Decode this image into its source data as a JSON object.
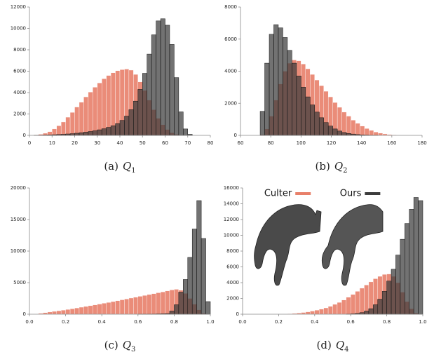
{
  "chart_data": [
    {
      "type": "histogram",
      "label": "(a)",
      "variable": "Q",
      "subscript": "1",
      "xlim": [
        0,
        80
      ],
      "xticks": [
        0,
        10,
        20,
        30,
        40,
        50,
        60,
        70,
        80
      ],
      "ylim": [
        0,
        12000
      ],
      "yticks": [
        0,
        2000,
        4000,
        6000,
        8000,
        10000,
        12000
      ],
      "bins": [
        0,
        2,
        4,
        6,
        8,
        10,
        12,
        14,
        16,
        18,
        20,
        22,
        24,
        26,
        28,
        30,
        32,
        34,
        36,
        38,
        40,
        42,
        44,
        46,
        48,
        50,
        52,
        54,
        56,
        58,
        60,
        62,
        64,
        66,
        68,
        70,
        72
      ],
      "series": [
        {
          "color": "#e8806a",
          "values": [
            20,
            50,
            100,
            200,
            350,
            600,
            900,
            1250,
            1700,
            2150,
            2650,
            3100,
            3600,
            4050,
            4500,
            4900,
            5300,
            5600,
            5850,
            6050,
            6150,
            6200,
            6100,
            5700,
            5000,
            4200,
            3300,
            2400,
            1600,
            1000,
            550,
            250,
            100,
            40,
            10,
            0
          ]
        },
        {
          "color": "#3c3c3c",
          "values": [
            0,
            10,
            20,
            30,
            40,
            60,
            80,
            100,
            130,
            160,
            200,
            250,
            300,
            360,
            430,
            520,
            620,
            750,
            900,
            1100,
            1400,
            1800,
            2400,
            3200,
            4300,
            5800,
            7600,
            9400,
            10700,
            10900,
            10300,
            8500,
            5400,
            2200,
            600,
            100
          ]
        }
      ]
    },
    {
      "type": "histogram",
      "label": "(b)",
      "variable": "Q",
      "subscript": "2",
      "xlim": [
        60,
        180
      ],
      "xticks": [
        60,
        80,
        100,
        120,
        140,
        160,
        180
      ],
      "ylim": [
        0,
        8000
      ],
      "yticks": [
        0,
        2000,
        4000,
        6000,
        8000
      ],
      "bins": [
        70,
        73,
        76,
        79,
        82,
        85,
        88,
        91,
        94,
        97,
        100,
        103,
        106,
        109,
        112,
        115,
        118,
        121,
        124,
        127,
        130,
        133,
        136,
        139,
        142,
        145,
        148,
        151,
        154,
        157,
        160,
        163,
        166,
        169,
        172
      ],
      "series": [
        {
          "color": "#e8806a",
          "values": [
            0,
            50,
            400,
            1200,
            2200,
            3200,
            4000,
            4500,
            4700,
            4650,
            4450,
            4150,
            3800,
            3450,
            3100,
            2750,
            2400,
            2050,
            1750,
            1450,
            1200,
            950,
            750,
            580,
            430,
            310,
            210,
            140,
            90,
            50,
            30,
            15,
            5,
            0
          ]
        },
        {
          "color": "#3c3c3c",
          "values": [
            0,
            1500,
            4500,
            6300,
            6900,
            6700,
            6100,
            5300,
            4500,
            3700,
            3000,
            2400,
            1900,
            1450,
            1100,
            800,
            580,
            400,
            270,
            180,
            120,
            80,
            50,
            30,
            20,
            10,
            5,
            0,
            0,
            0,
            0,
            0,
            0,
            0
          ]
        }
      ]
    },
    {
      "type": "histogram",
      "label": "(c)",
      "variable": "Q",
      "subscript": "3",
      "xlim": [
        0,
        1
      ],
      "xticks": [
        {
          "value": 0,
          "label": "0.0"
        },
        0.2,
        0.4,
        0.6,
        0.8,
        {
          "value": 1,
          "label": "1.0"
        }
      ],
      "ylim": [
        0,
        20000
      ],
      "yticks": [
        0,
        5000,
        10000,
        15000,
        20000
      ],
      "bins": [
        0,
        0.025,
        0.05,
        0.075,
        0.1,
        0.125,
        0.15,
        0.175,
        0.2,
        0.225,
        0.25,
        0.275,
        0.3,
        0.325,
        0.35,
        0.375,
        0.4,
        0.425,
        0.45,
        0.475,
        0.5,
        0.525,
        0.55,
        0.575,
        0.6,
        0.625,
        0.65,
        0.675,
        0.7,
        0.725,
        0.75,
        0.775,
        0.8,
        0.825,
        0.85,
        0.875,
        0.9,
        0.925,
        0.95,
        0.975,
        1
      ],
      "series": [
        {
          "color": "#e8806a",
          "values": [
            0,
            50,
            150,
            250,
            350,
            450,
            550,
            650,
            760,
            870,
            990,
            1110,
            1230,
            1350,
            1480,
            1610,
            1740,
            1870,
            2000,
            2140,
            2280,
            2420,
            2560,
            2700,
            2840,
            2980,
            3120,
            3260,
            3400,
            3540,
            3700,
            3850,
            3950,
            3800,
            3300,
            2500,
            1600,
            700,
            150,
            0
          ]
        },
        {
          "color": "#3c3c3c",
          "values": [
            0,
            0,
            0,
            0,
            0,
            0,
            0,
            0,
            0,
            0,
            0,
            0,
            0,
            0,
            0,
            0,
            0,
            0,
            0,
            0,
            0,
            0,
            0,
            0,
            5,
            10,
            20,
            30,
            50,
            70,
            100,
            500,
            1500,
            3500,
            5500,
            9000,
            13500,
            18000,
            12000,
            2000
          ]
        }
      ]
    },
    {
      "type": "histogram",
      "label": "(d)",
      "variable": "Q",
      "subscript": "4",
      "legend": "top",
      "xlim": [
        0,
        1
      ],
      "xticks": [
        {
          "value": 0,
          "label": "0.0"
        },
        0.2,
        0.4,
        0.6,
        0.8,
        {
          "value": 1,
          "label": "1.0"
        }
      ],
      "ylim": [
        0,
        16000
      ],
      "yticks": [
        0,
        2000,
        4000,
        6000,
        8000,
        10000,
        12000,
        14000,
        16000
      ],
      "bins": [
        0,
        0.025,
        0.05,
        0.075,
        0.1,
        0.125,
        0.15,
        0.175,
        0.2,
        0.225,
        0.25,
        0.275,
        0.3,
        0.325,
        0.35,
        0.375,
        0.4,
        0.425,
        0.45,
        0.475,
        0.5,
        0.525,
        0.55,
        0.575,
        0.6,
        0.625,
        0.65,
        0.675,
        0.7,
        0.725,
        0.75,
        0.775,
        0.8,
        0.825,
        0.85,
        0.875,
        0.9,
        0.925,
        0.95,
        0.975,
        1
      ],
      "series": [
        {
          "name": "Culter",
          "color": "#e8806a",
          "values": [
            0,
            0,
            0,
            0,
            0,
            0,
            0,
            0,
            10,
            30,
            60,
            100,
            150,
            220,
            300,
            400,
            520,
            650,
            800,
            1000,
            1250,
            1500,
            1800,
            2150,
            2500,
            2900,
            3300,
            3700,
            4100,
            4500,
            4800,
            5050,
            5100,
            4800,
            4000,
            2800,
            1600,
            700,
            150,
            0
          ]
        },
        {
          "name": "Ours",
          "color": "#3c3c3c",
          "values": [
            0,
            0,
            0,
            0,
            0,
            0,
            0,
            0,
            0,
            0,
            0,
            0,
            0,
            0,
            0,
            0,
            0,
            0,
            0,
            0,
            0,
            0,
            0,
            20,
            50,
            100,
            200,
            400,
            700,
            1200,
            1900,
            2900,
            4200,
            5700,
            7500,
            9500,
            11500,
            13300,
            14800,
            14400
          ]
        }
      ]
    }
  ]
}
